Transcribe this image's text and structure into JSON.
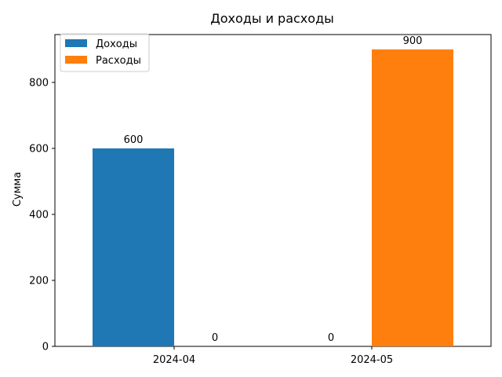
{
  "chart_data": {
    "type": "bar",
    "title": "Доходы и расходы",
    "xlabel": "",
    "ylabel": "Сумма",
    "categories": [
      "2024-04",
      "2024-05"
    ],
    "series": [
      {
        "name": "Доходы",
        "values": [
          600,
          0
        ],
        "color": "#1f77b4"
      },
      {
        "name": "Расходы",
        "values": [
          0,
          900
        ],
        "color": "#ff7f0e"
      }
    ],
    "data_labels": [
      {
        "series": 0,
        "category": 0,
        "text": "600"
      },
      {
        "series": 1,
        "category": 0,
        "text": "0"
      },
      {
        "series": 0,
        "category": 1,
        "text": "0"
      },
      {
        "series": 1,
        "category": 1,
        "text": "900"
      }
    ],
    "ylim": [
      0,
      945
    ],
    "yticks": [
      0,
      200,
      400,
      600,
      800
    ],
    "ytick_labels": [
      "0",
      "200",
      "400",
      "600",
      "800"
    ],
    "grid": false,
    "legend_position": "top-left"
  }
}
